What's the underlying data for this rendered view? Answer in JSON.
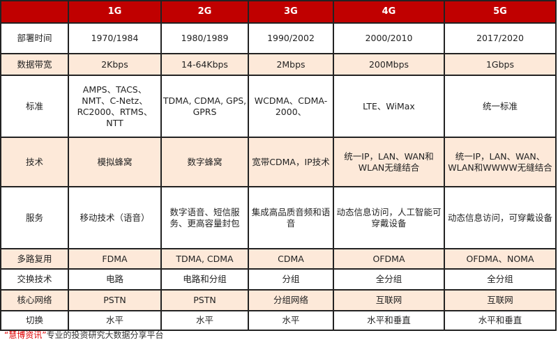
{
  "colors": {
    "header_bg": "#c00000",
    "alt_row_bg": "#fde9d9",
    "border": "#222222"
  },
  "header": [
    "",
    "1G",
    "2G",
    "3G",
    "4G",
    "5G"
  ],
  "rows": [
    {
      "label": "部署时间",
      "cells": [
        "1970/1984",
        "1980/1989",
        "1990/2002",
        "2000/2010",
        "2017/2020"
      ],
      "alt": false
    },
    {
      "label": "数据带宽",
      "cells": [
        "2Kbps",
        "14-64Kbps",
        "2Mbps",
        "200Mbps",
        "1Gbps"
      ],
      "alt": true
    },
    {
      "label": "标准",
      "cells": [
        "AMPS、TACS、NMT、C-Netz、RC2000、RTMS、NTT",
        "TDMA, CDMA, GPS, GPRS",
        "WCDMA、CDMA-2000、",
        "LTE、WiMax",
        "统一标准"
      ],
      "alt": false
    },
    {
      "label": "技术",
      "cells": [
        "模拟蜂窝",
        "数字蜂窝",
        "宽带CDMA，IP技术",
        "统一IP，LAN、WAN和WLAN无缝结合",
        "统一IP，LAN、WAN、WLAN和WWWW无缝结合"
      ],
      "alt": true
    },
    {
      "label": "服务",
      "cells": [
        "移动技术（语音）",
        "数字语音、短信服务、更高容量封包",
        "集成高品质音频和语音",
        "动态信息访问，人工智能可穿戴设备",
        "动态信息访问，可穿戴设备"
      ],
      "alt": false
    },
    {
      "label": "多路复用",
      "cells": [
        "FDMA",
        "TDMA, CDMA",
        "CDMA",
        "OFDMA",
        "OFDMA、NOMA"
      ],
      "alt": true
    },
    {
      "label": "交换技术",
      "cells": [
        "电路",
        "电路和分组",
        "分组",
        "全分组",
        "全分组"
      ],
      "alt": false
    },
    {
      "label": "核心网络",
      "cells": [
        "PSTN",
        "PSTN",
        "分组网络",
        "互联网",
        "互联网"
      ],
      "alt": true
    },
    {
      "label": "切换",
      "cells": [
        "水平",
        "水平",
        "水平",
        "水平和垂直",
        "水平和垂直"
      ],
      "alt": false
    }
  ],
  "footer": {
    "brand": "“慧博资讯”",
    "text": "专业的投资研究大数据分享平台"
  }
}
